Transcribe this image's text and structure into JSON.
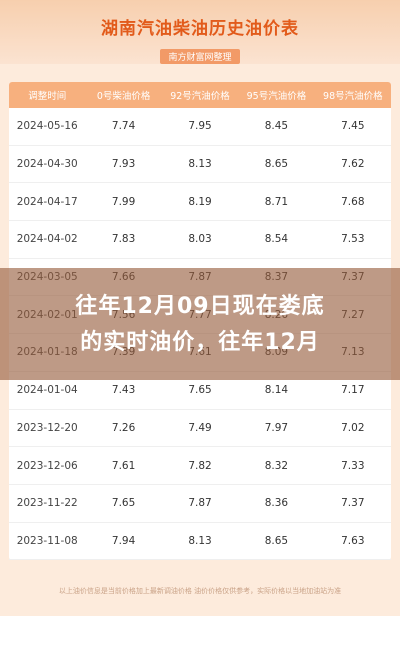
{
  "header": {
    "title": "湖南汽油柴油历史油价表",
    "subtitle": "南方财富网整理"
  },
  "table": {
    "columns": [
      "调整时间",
      "0号柴油价格",
      "92号汽油价格",
      "95号汽油价格",
      "98号汽油价格"
    ],
    "rows": [
      [
        "2024-05-16",
        "7.74",
        "7.95",
        "8.45",
        "7.45"
      ],
      [
        "2024-04-30",
        "7.93",
        "8.13",
        "8.65",
        "7.62"
      ],
      [
        "2024-04-17",
        "7.99",
        "8.19",
        "8.71",
        "7.68"
      ],
      [
        "2024-04-02",
        "7.83",
        "8.03",
        "8.54",
        "7.53"
      ],
      [
        "2024-03-05",
        "7.66",
        "7.87",
        "8.37",
        "7.37"
      ],
      [
        "2024-02-01",
        "7.56",
        "7.77",
        "8.26",
        "7.27"
      ],
      [
        "2024-01-18",
        "7.39",
        "7.61",
        "8.09",
        "7.13"
      ],
      [
        "2024-01-04",
        "7.43",
        "7.65",
        "8.14",
        "7.17"
      ],
      [
        "2023-12-20",
        "7.26",
        "7.49",
        "7.97",
        "7.02"
      ],
      [
        "2023-12-06",
        "7.61",
        "7.82",
        "8.32",
        "7.33"
      ],
      [
        "2023-11-22",
        "7.65",
        "7.87",
        "8.36",
        "7.37"
      ],
      [
        "2023-11-08",
        "7.94",
        "8.13",
        "8.65",
        "7.63"
      ]
    ]
  },
  "banner": {
    "line1": "往年12月09日现在娄底",
    "line2": "的实时油价，往年12月"
  },
  "footer": {
    "note": "以上油价信息是当前价格加上最新调油价格 油价价格仅供参考，实际价格以当地加油站为准"
  },
  "colors": {
    "accent": "#e25b1b",
    "header_bg": "#f7b07e",
    "banner_bg": "#965c3c"
  }
}
